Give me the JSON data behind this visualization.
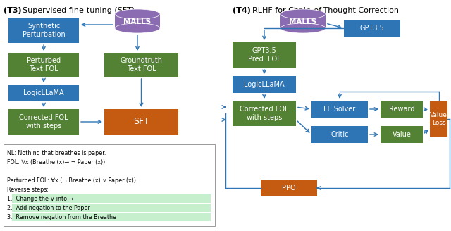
{
  "blue": "#2E75B6",
  "green": "#548235",
  "orange": "#C55A11",
  "purple": "#8B6BB1",
  "white": "#FFFFFF",
  "bg": "#FFFFFF",
  "note_lines": [
    "NL: Nothing that breathes is paper.",
    "FOL: ∀x (Breathe (x)→ ¬ Paper (x))",
    "",
    "Perturbed FOL: ∀x (¬ Breathe (x) ∨ Paper (x))",
    "Reverse steps:",
    "1.  Change the ∨ into →",
    "2.  Add negation to the Paper",
    "3.  Remove negation from the Breathe"
  ],
  "highlight_lines": [
    5,
    6,
    7
  ]
}
